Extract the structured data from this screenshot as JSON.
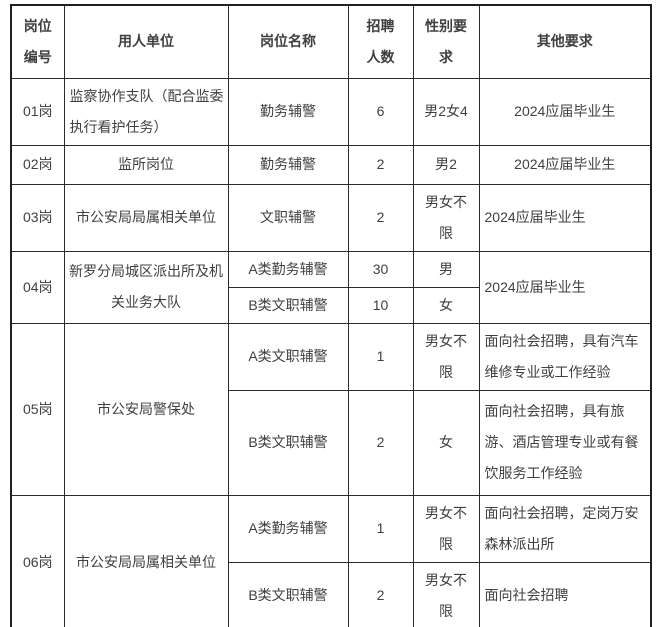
{
  "colors": {
    "text": "#404040",
    "border": "#2b2b2b",
    "outer_border": "#1f1f1f",
    "background": "#ffffff"
  },
  "table": {
    "header": {
      "col_id": [
        "岗位",
        "编号"
      ],
      "col_employer": "用人单位",
      "col_position": "岗位名称",
      "col_count": [
        "招聘",
        "人数"
      ],
      "col_gender": [
        "性别要",
        "求"
      ],
      "col_other": "其他要求"
    },
    "rows": {
      "r01": {
        "id": "01岗",
        "employer": [
          "监察协作支队（配合监委",
          "执行看护任务）"
        ],
        "position": "勤务辅警",
        "count": "6",
        "gender": "男2女4",
        "other": "2024应届毕业生"
      },
      "r02": {
        "id": "02岗",
        "employer": "监所岗位",
        "position": "勤务辅警",
        "count": "2",
        "gender": "男2",
        "other": "2024应届毕业生"
      },
      "r03": {
        "id": "03岗",
        "employer": "市公安局局属相关单位",
        "position": "文职辅警",
        "count": "2",
        "gender": [
          "男女不",
          "限"
        ],
        "other": "2024应届毕业生"
      },
      "r04": {
        "id": "04岗",
        "employer": [
          "新罗分局城区派出所及机",
          "关业务大队"
        ],
        "other": "2024应届毕业生",
        "sub_a": {
          "position": "A类勤务辅警",
          "count": "30",
          "gender": "男"
        },
        "sub_b": {
          "position": "B类文职辅警",
          "count": "10",
          "gender": "女"
        }
      },
      "r05": {
        "id": "05岗",
        "employer": "市公安局警保处",
        "sub_a": {
          "position": "A类文职辅警",
          "count": "1",
          "gender": [
            "男女不",
            "限"
          ],
          "other": [
            "面向社会招聘，具有汽车",
            "维修专业或工作经验"
          ]
        },
        "sub_b": {
          "position": "B类文职辅警",
          "count": "2",
          "gender": "女",
          "other": [
            "面向社会招聘，具有旅",
            "游、酒店管理专业或有餐",
            "饮服务工作经验"
          ]
        }
      },
      "r06": {
        "id": "06岗",
        "employer": "市公安局局属相关单位",
        "sub_a": {
          "position": "A类勤务辅警",
          "count": "1",
          "gender": [
            "男女不",
            "限"
          ],
          "other": [
            "面向社会招聘，定岗万安",
            "森林派出所"
          ]
        },
        "sub_b": {
          "position": "B类文职辅警",
          "count": "2",
          "gender": [
            "男女不",
            "限"
          ],
          "other": "面向社会招聘"
        }
      }
    }
  }
}
